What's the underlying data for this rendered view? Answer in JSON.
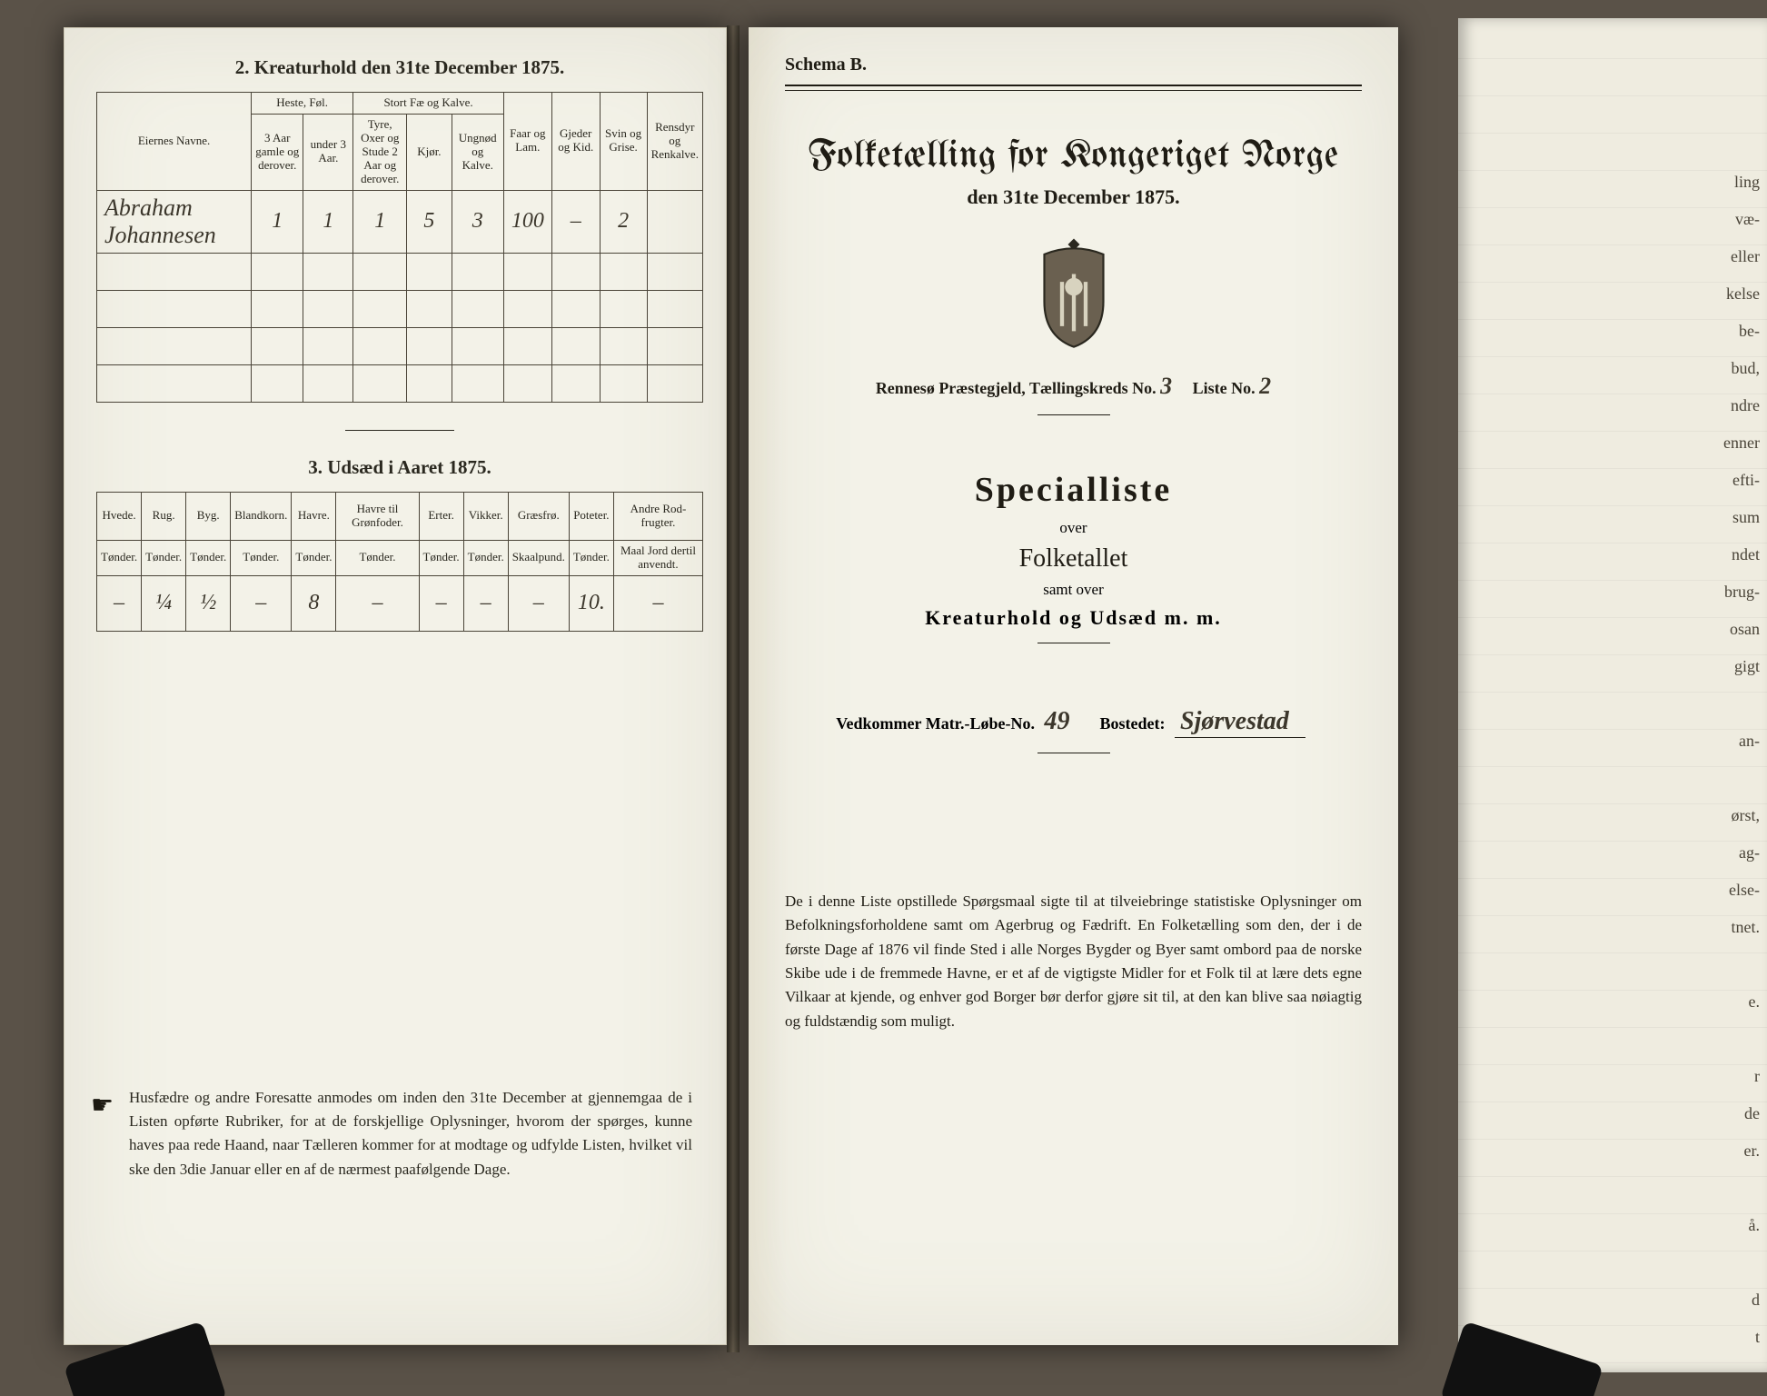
{
  "left": {
    "section2_title": "2.  Kreaturhold den 31te December 1875.",
    "table2": {
      "corner": "Eiernes Navne.",
      "group_heste": "Heste, Føl.",
      "group_stort": "Stort Fæ og Kalve.",
      "faar": "Faar og Lam.",
      "gjeder": "Gjeder og Kid.",
      "svin": "Svin og Grise.",
      "rensdyr": "Rensdyr og Renkalve.",
      "heste_a": "3 Aar gamle og derover.",
      "heste_b": "under 3 Aar.",
      "stort_a": "Tyre, Oxer og Stude 2 Aar og derover.",
      "stort_b": "Kjør.",
      "stort_c": "Ungnød og Kalve.",
      "row": {
        "name": "Abraham Johannesen",
        "heste_a": "1",
        "heste_b": "1",
        "stort_a": "1",
        "stort_b": "5",
        "stort_c": "3",
        "faar": "100",
        "gjeder": "–",
        "svin": "2",
        "rensdyr": ""
      }
    },
    "section3_title": "3.  Udsæd i Aaret 1875.",
    "table3": {
      "cols": [
        "Hvede.",
        "Rug.",
        "Byg.",
        "Blandkorn.",
        "Havre.",
        "Havre til Grønfoder.",
        "Erter.",
        "Vikker.",
        "Græsfrø.",
        "Poteter.",
        "Andre Rod-frugter."
      ],
      "units": [
        "Tønder.",
        "Tønder.",
        "Tønder.",
        "Tønder.",
        "Tønder.",
        "Tønder.",
        "Tønder.",
        "Tønder.",
        "Skaalpund.",
        "Tønder.",
        "Maal Jord dertil anvendt."
      ],
      "row": [
        "–",
        "¼",
        "½",
        "–",
        "8",
        "–",
        "–",
        "–",
        "–",
        "10.",
        "–"
      ]
    },
    "footnote_lead": "☛",
    "footnote": "Husfædre og andre Foresatte anmodes om inden den 31te December at gjennemgaa de i Listen opførte Rubriker, for at de forskjellige Oplysninger, hvorom der spørges, kunne haves paa rede Haand, naar Tælleren kommer for at modtage og udfylde Listen, hvilket vil ske den 3die Januar eller en af de nærmest paafølgende Dage."
  },
  "right": {
    "schema": "Schema B.",
    "title": "Folketælling for Kongeriget Norge",
    "subtitle": "den 31te December 1875.",
    "districts_pre": "Rennesø Præstegjeld,   Tællingskreds No.",
    "kreds_no": "3",
    "liste_label": "Liste No.",
    "liste_no": "2",
    "special": "Specialliste",
    "over": "over",
    "folketallet": "Folketallet",
    "samt": "samt over",
    "kreatur": "Kreaturhold  og  Udsæd  m.  m.",
    "matr_label": "Vedkommer Matr.-Løbe-No.",
    "matr_no": "49",
    "bosted_label": "Bostedet:",
    "bosted_val": "Sjørvestad",
    "body": "De i denne Liste opstillede Spørgsmaal sigte til at tilveiebringe statistiske Oplysninger om Befolkningsforholdene samt om Agerbrug og Fædrift.  En Folketælling som den, der i de første Dage af 1876 vil finde Sted i alle Norges Bygder og Byer samt ombord paa de norske Skibe ude i de fremmede Havne, er et af de vigtigste Midler for et Folk til at lære dets egne Vilkaar at kjende, og enhver god Borger bør derfor gjøre sit til, at den kan blive saa nøiagtig og fuldstændig som muligt."
  },
  "right_stack_fragments": [
    "",
    "",
    "",
    "ling",
    "væ-",
    "eller",
    "kelse",
    "be-",
    "bud,",
    "ndre",
    "enner",
    "efti-",
    "sum",
    "ndet",
    "brug-",
    "osan",
    "gigt",
    "",
    "an-",
    "",
    "ørst,",
    "ag-",
    "else-",
    "tnet.",
    "",
    "e.",
    "",
    "r",
    "de",
    "er.",
    "",
    "å.",
    "",
    "d",
    "t"
  ]
}
